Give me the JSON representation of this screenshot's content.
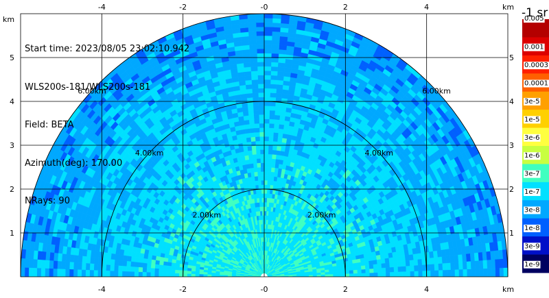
{
  "info": {
    "start_time": "Start time: 2023/08/05 23:02:10.942",
    "instrument": "WLS200s-181/WLS200s-181",
    "field": "Field: BETA",
    "azimuth": "Azimuth(deg): 170.00",
    "nrays": "NRays: 90"
  },
  "chart_data": {
    "type": "heatmap",
    "subtype": "polar-rhi-sweep",
    "x_axis": {
      "range": [
        -6,
        6
      ],
      "ticks": [
        -4,
        -2,
        0,
        2,
        4
      ],
      "unit_label": "km"
    },
    "y_axis": {
      "range": [
        0,
        6
      ],
      "ticks": [
        1,
        2,
        3,
        4,
        5
      ],
      "unit_label": "km"
    },
    "grid": true,
    "range_rings_km": [
      2,
      4,
      6
    ],
    "range_ring_labels": [
      "2.00km",
      "4.00km",
      "6.00km"
    ],
    "max_range_km": 6,
    "n_rays": 90,
    "azimuth_deg": 170.0,
    "field": "BETA",
    "colorbar": {
      "title": "-1 sr",
      "labels": [
        "0.005",
        "0.001",
        "0.0003",
        "0.0001",
        "3e-5",
        "1e-5",
        "3e-6",
        "1e-6",
        "3e-7",
        "1e-7",
        "3e-8",
        "1e-8",
        "3e-9",
        "1e-9"
      ],
      "colors": [
        "#b40000",
        "#dc0000",
        "#ff2000",
        "#ff6000",
        "#ffa000",
        "#ffd000",
        "#ffff40",
        "#c8ff40",
        "#40ffc0",
        "#00e0ff",
        "#00a8ff",
        "#0060ff",
        "#0010c8",
        "#000060"
      ]
    },
    "value_profile": {
      "description_free": false,
      "colorbar_index_by_range_km": [
        [
          0,
          8.4
        ],
        [
          2,
          8.9
        ],
        [
          4,
          9.5
        ],
        [
          6,
          10.2
        ]
      ]
    }
  }
}
